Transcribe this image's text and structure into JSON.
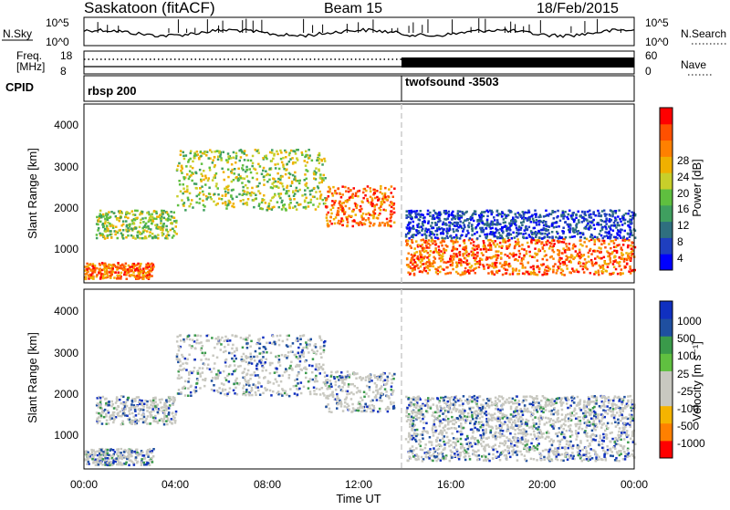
{
  "header": {
    "site": "Saskatoon (fitACF)",
    "beam": "Beam 15",
    "date": "18/Feb/2015"
  },
  "summary": {
    "nsky_label": "N.Sky",
    "nsky_ticks": [
      "10^5",
      "10^0"
    ],
    "nsearch_label": "N.Search",
    "nsearch_ticks": [
      "10^5",
      "10^0"
    ],
    "freq_label_1": "Freq.",
    "freq_label_2": "[MHz]",
    "freq_ticks": [
      "18",
      "8"
    ],
    "nave_label": "Nave",
    "nave_ticks": [
      "60",
      "0"
    ],
    "cpid_label": "CPID",
    "cpid_segments": [
      {
        "name": "rbsp 200",
        "start_h": 0
      },
      {
        "name": "twofsound -3503",
        "start_h": 14
      }
    ]
  },
  "colors": {
    "power_scale": [
      "#0000ff",
      "#1f3fbf",
      "#2f6f7f",
      "#3f9f5f",
      "#5fbf3f",
      "#c8cf2a",
      "#f0b000",
      "#ff8000",
      "#ff5000",
      "#ff0000"
    ],
    "velocity_scale": [
      "#ff0000",
      "#ff8000",
      "#f5b400",
      "#c8c8c0",
      "#c8c8c0",
      "#60c040",
      "#3a9a4a",
      "#1f4fa0",
      "#1030c0"
    ],
    "ground_scatter": "#c8c8c0"
  },
  "chart_data": [
    {
      "type": "heatmap",
      "title": "",
      "ylabel": "Slant Range [km]",
      "ylim": [
        180,
        4600
      ],
      "yticks": [
        "1000",
        "2000",
        "3000",
        "4000"
      ],
      "xlim_hours": [
        0,
        24
      ],
      "colorbar_label": "Power [dB]",
      "colorbar_ticks": [
        "28",
        "24",
        "20",
        "16",
        "12",
        "8",
        "4"
      ],
      "scatter_bands": [
        {
          "from_h": 0.0,
          "to_h": 3.0,
          "range_from": 300,
          "range_to": 700,
          "level": "high"
        },
        {
          "from_h": 0.5,
          "to_h": 4.0,
          "range_from": 1300,
          "range_to": 2000,
          "level": "mid"
        },
        {
          "from_h": 4.0,
          "to_h": 10.5,
          "range_from": 2000,
          "range_to": 3500,
          "level": "mid"
        },
        {
          "from_h": 10.5,
          "to_h": 13.5,
          "range_from": 1600,
          "range_to": 2600,
          "level": "high"
        },
        {
          "from_h": 14.0,
          "to_h": 24.0,
          "range_from": 400,
          "range_to": 1300,
          "level": "high"
        },
        {
          "from_h": 14.0,
          "to_h": 24.0,
          "range_from": 1300,
          "range_to": 2000,
          "level": "low"
        }
      ]
    },
    {
      "type": "heatmap",
      "title": "",
      "ylabel": "Slant Range [km]",
      "ylim": [
        180,
        4600
      ],
      "yticks": [
        "1000",
        "2000",
        "3000",
        "4000"
      ],
      "xlim_hours": [
        0,
        24
      ],
      "xticks": [
        "00:00",
        "04:00",
        "08:00",
        "12:00",
        "16:00",
        "20:00",
        "00:00"
      ],
      "xlabel": "Time UT",
      "colorbar_label": "Velocity [m s⁻¹]",
      "colorbar_ticks": [
        "1000",
        "500",
        "100",
        "25",
        "-25",
        "-100",
        "-500",
        "-1000"
      ]
    }
  ]
}
